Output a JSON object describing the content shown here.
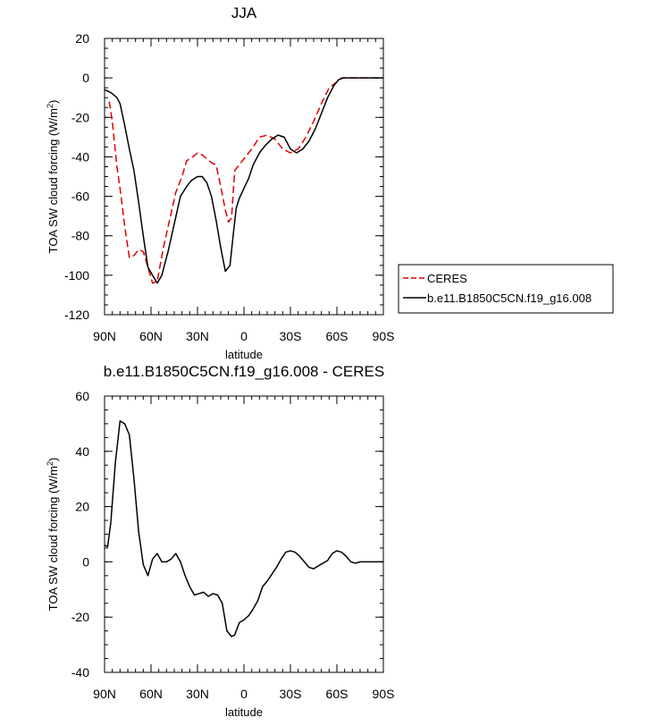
{
  "chart_data": [
    {
      "type": "line",
      "title": "JJA",
      "xlabel": "latitude",
      "ylabel": "TOA SW cloud forcing (W/m",
      "ylabel_sup": "2",
      "ylabel_end": ")",
      "xlim": [
        90,
        -90
      ],
      "ylim": [
        -120,
        20
      ],
      "xticks": [
        90,
        60,
        30,
        0,
        -30,
        -60,
        -90
      ],
      "xtick_labels": [
        "90N",
        "60N",
        "30N",
        "0",
        "30S",
        "60S",
        "90S"
      ],
      "yticks": [
        20,
        0,
        -20,
        -40,
        -60,
        -80,
        -100,
        -120
      ],
      "ytick_labels": [
        "20",
        "0",
        "-20",
        "-40",
        "-60",
        "-80",
        "-100",
        "-120"
      ],
      "legend_position": "right",
      "series": [
        {
          "name": "CERES",
          "color": "#e00000",
          "dash": "dashed",
          "x": [
            87,
            85,
            82,
            80,
            77,
            74,
            71,
            68,
            65,
            62,
            59,
            56,
            52,
            48,
            44,
            40,
            37,
            33,
            30,
            27,
            24,
            21,
            18,
            15,
            12,
            10,
            8,
            6,
            3,
            0,
            -3,
            -6,
            -10,
            -15,
            -20,
            -25,
            -30,
            -35,
            -40,
            -45,
            -50,
            -55,
            -60,
            -63,
            -66,
            -70,
            -75,
            -80,
            -85,
            -90
          ],
          "y": [
            -12,
            -22,
            -45,
            -56,
            -75,
            -91,
            -90,
            -87,
            -88,
            -96,
            -104,
            -103,
            -86,
            -72,
            -58,
            -50,
            -42,
            -40,
            -38,
            -39,
            -41,
            -43,
            -44,
            -55,
            -67,
            -73,
            -71,
            -47,
            -44,
            -41,
            -38,
            -35,
            -30,
            -29,
            -31,
            -36,
            -38,
            -36,
            -30,
            -22,
            -13,
            -5,
            -2,
            0,
            0,
            0,
            0,
            0,
            0,
            0
          ]
        },
        {
          "name": "b.e11.B1850C5CN.f19_g16.008",
          "color": "#000000",
          "dash": "solid",
          "x": [
            90,
            87,
            85,
            82,
            80,
            77,
            74,
            71,
            68,
            65,
            62,
            59,
            56,
            53,
            49,
            45,
            41,
            37,
            34,
            30,
            27,
            24,
            21,
            18,
            15,
            12,
            9,
            7,
            5,
            3,
            0,
            -3,
            -6,
            -10,
            -14,
            -18,
            -22,
            -26,
            -30,
            -34,
            -38,
            -42,
            -46,
            -50,
            -54,
            -58,
            -61,
            -64,
            -67,
            -70,
            -75,
            -80,
            -85,
            -90
          ],
          "y": [
            -6,
            -7,
            -8,
            -10,
            -13,
            -24,
            -36,
            -47,
            -63,
            -80,
            -96,
            -100,
            -104,
            -100,
            -88,
            -74,
            -60,
            -55,
            -52,
            -50,
            -50,
            -53,
            -60,
            -72,
            -86,
            -98,
            -95,
            -80,
            -66,
            -61,
            -56,
            -51,
            -44,
            -38,
            -34,
            -31,
            -29,
            -30,
            -36,
            -38,
            -36,
            -32,
            -26,
            -18,
            -10,
            -4,
            -1,
            0,
            0,
            0,
            0,
            0,
            0,
            0
          ]
        }
      ]
    },
    {
      "type": "line",
      "title": "b.e11.B1850C5CN.f19_g16.008 - CERES",
      "xlabel": "latitude",
      "ylabel": "TOA SW cloud forcing (W/m",
      "ylabel_sup": "2",
      "ylabel_end": ")",
      "xlim": [
        90,
        -90
      ],
      "ylim": [
        -40,
        60
      ],
      "xticks": [
        90,
        60,
        30,
        0,
        -30,
        -60,
        -90
      ],
      "xtick_labels": [
        "90N",
        "60N",
        "30N",
        "0",
        "30S",
        "60S",
        "90S"
      ],
      "yticks": [
        60,
        40,
        20,
        0,
        -20,
        -40
      ],
      "ytick_labels": [
        "60",
        "40",
        "20",
        "0",
        "-20",
        "-40"
      ],
      "series": [
        {
          "color": "#000000",
          "dash": "solid",
          "x": [
            90,
            88,
            86,
            83,
            80,
            77,
            74,
            71,
            68,
            65,
            62,
            59,
            56,
            53,
            50,
            47,
            44,
            41,
            38,
            35,
            32,
            29,
            26,
            23,
            20,
            17,
            14,
            11,
            8,
            6,
            3,
            0,
            -3,
            -6,
            -9,
            -12,
            -15,
            -18,
            -21,
            -24,
            -27,
            -30,
            -33,
            -36,
            -39,
            -42,
            -45,
            -48,
            -51,
            -54,
            -57,
            -60,
            -63,
            -66,
            -69,
            -72,
            -75,
            -80,
            -85,
            -90
          ],
          "y": [
            6,
            5.5,
            14,
            36,
            51,
            50,
            46,
            30,
            11,
            -1,
            -5,
            1,
            3,
            0,
            0,
            1,
            3,
            0,
            -5,
            -9,
            -12,
            -11.5,
            -11,
            -12.5,
            -11.5,
            -12,
            -15,
            -25,
            -27,
            -26.5,
            -22,
            -21,
            -19.5,
            -17,
            -14,
            -9,
            -7,
            -4.5,
            -2,
            1,
            3.5,
            4,
            3.5,
            2,
            0,
            -2,
            -2.5,
            -1.5,
            -0.5,
            0.5,
            3,
            4,
            3.5,
            2,
            0,
            -0.5,
            0,
            0,
            0,
            0
          ]
        }
      ]
    }
  ]
}
